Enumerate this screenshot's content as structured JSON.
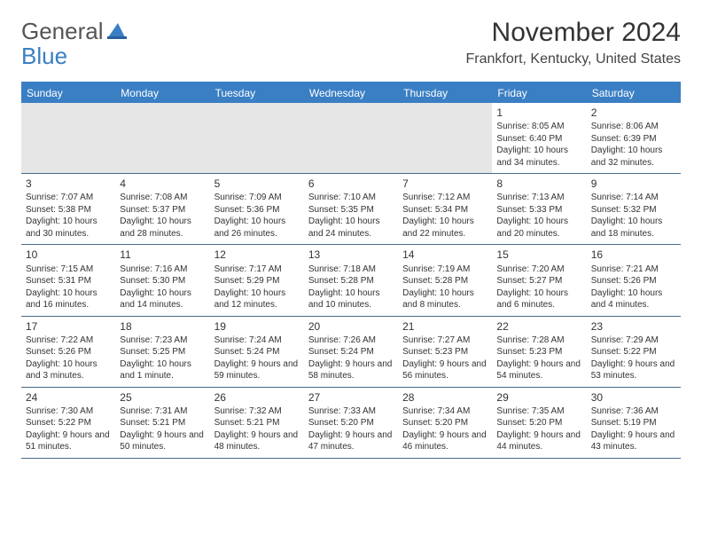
{
  "logo": {
    "text1": "General",
    "text2": "Blue"
  },
  "title": "November 2024",
  "location": "Frankfort, Kentucky, United States",
  "colors": {
    "header_bg": "#3a7fc4",
    "border": "#4a6a8a",
    "logo_blue": "#3a7fc4",
    "text": "#333333",
    "empty_bg": "#e6e6e6"
  },
  "day_names": [
    "Sunday",
    "Monday",
    "Tuesday",
    "Wednesday",
    "Thursday",
    "Friday",
    "Saturday"
  ],
  "weeks": [
    [
      null,
      null,
      null,
      null,
      null,
      {
        "d": "1",
        "sr": "8:05 AM",
        "ss": "6:40 PM",
        "dl": "10 hours and 34 minutes."
      },
      {
        "d": "2",
        "sr": "8:06 AM",
        "ss": "6:39 PM",
        "dl": "10 hours and 32 minutes."
      }
    ],
    [
      {
        "d": "3",
        "sr": "7:07 AM",
        "ss": "5:38 PM",
        "dl": "10 hours and 30 minutes."
      },
      {
        "d": "4",
        "sr": "7:08 AM",
        "ss": "5:37 PM",
        "dl": "10 hours and 28 minutes."
      },
      {
        "d": "5",
        "sr": "7:09 AM",
        "ss": "5:36 PM",
        "dl": "10 hours and 26 minutes."
      },
      {
        "d": "6",
        "sr": "7:10 AM",
        "ss": "5:35 PM",
        "dl": "10 hours and 24 minutes."
      },
      {
        "d": "7",
        "sr": "7:12 AM",
        "ss": "5:34 PM",
        "dl": "10 hours and 22 minutes."
      },
      {
        "d": "8",
        "sr": "7:13 AM",
        "ss": "5:33 PM",
        "dl": "10 hours and 20 minutes."
      },
      {
        "d": "9",
        "sr": "7:14 AM",
        "ss": "5:32 PM",
        "dl": "10 hours and 18 minutes."
      }
    ],
    [
      {
        "d": "10",
        "sr": "7:15 AM",
        "ss": "5:31 PM",
        "dl": "10 hours and 16 minutes."
      },
      {
        "d": "11",
        "sr": "7:16 AM",
        "ss": "5:30 PM",
        "dl": "10 hours and 14 minutes."
      },
      {
        "d": "12",
        "sr": "7:17 AM",
        "ss": "5:29 PM",
        "dl": "10 hours and 12 minutes."
      },
      {
        "d": "13",
        "sr": "7:18 AM",
        "ss": "5:28 PM",
        "dl": "10 hours and 10 minutes."
      },
      {
        "d": "14",
        "sr": "7:19 AM",
        "ss": "5:28 PM",
        "dl": "10 hours and 8 minutes."
      },
      {
        "d": "15",
        "sr": "7:20 AM",
        "ss": "5:27 PM",
        "dl": "10 hours and 6 minutes."
      },
      {
        "d": "16",
        "sr": "7:21 AM",
        "ss": "5:26 PM",
        "dl": "10 hours and 4 minutes."
      }
    ],
    [
      {
        "d": "17",
        "sr": "7:22 AM",
        "ss": "5:26 PM",
        "dl": "10 hours and 3 minutes."
      },
      {
        "d": "18",
        "sr": "7:23 AM",
        "ss": "5:25 PM",
        "dl": "10 hours and 1 minute."
      },
      {
        "d": "19",
        "sr": "7:24 AM",
        "ss": "5:24 PM",
        "dl": "9 hours and 59 minutes."
      },
      {
        "d": "20",
        "sr": "7:26 AM",
        "ss": "5:24 PM",
        "dl": "9 hours and 58 minutes."
      },
      {
        "d": "21",
        "sr": "7:27 AM",
        "ss": "5:23 PM",
        "dl": "9 hours and 56 minutes."
      },
      {
        "d": "22",
        "sr": "7:28 AM",
        "ss": "5:23 PM",
        "dl": "9 hours and 54 minutes."
      },
      {
        "d": "23",
        "sr": "7:29 AM",
        "ss": "5:22 PM",
        "dl": "9 hours and 53 minutes."
      }
    ],
    [
      {
        "d": "24",
        "sr": "7:30 AM",
        "ss": "5:22 PM",
        "dl": "9 hours and 51 minutes."
      },
      {
        "d": "25",
        "sr": "7:31 AM",
        "ss": "5:21 PM",
        "dl": "9 hours and 50 minutes."
      },
      {
        "d": "26",
        "sr": "7:32 AM",
        "ss": "5:21 PM",
        "dl": "9 hours and 48 minutes."
      },
      {
        "d": "27",
        "sr": "7:33 AM",
        "ss": "5:20 PM",
        "dl": "9 hours and 47 minutes."
      },
      {
        "d": "28",
        "sr": "7:34 AM",
        "ss": "5:20 PM",
        "dl": "9 hours and 46 minutes."
      },
      {
        "d": "29",
        "sr": "7:35 AM",
        "ss": "5:20 PM",
        "dl": "9 hours and 44 minutes."
      },
      {
        "d": "30",
        "sr": "7:36 AM",
        "ss": "5:19 PM",
        "dl": "9 hours and 43 minutes."
      }
    ]
  ],
  "labels": {
    "sunrise": "Sunrise: ",
    "sunset": "Sunset: ",
    "daylight": "Daylight: "
  }
}
